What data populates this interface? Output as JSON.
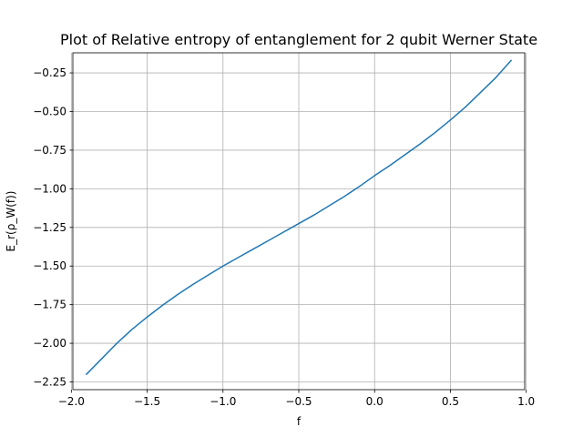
{
  "chart_data": {
    "type": "line",
    "title": "Plot of Relative entropy of entanglement for 2 qubit Werner State",
    "xlabel": "f",
    "ylabel": "E_r(ρ_W(f))",
    "xlim": [
      -1.99,
      0.99
    ],
    "ylim": [
      -2.3,
      -0.12
    ],
    "xticks": [
      -2.0,
      -1.5,
      -1.0,
      -0.5,
      0.0,
      0.5,
      1.0
    ],
    "xtick_labels": [
      "−2.0",
      "−1.5",
      "−1.0",
      "−0.5",
      "0.0",
      "0.5",
      "1.0"
    ],
    "yticks": [
      -2.25,
      -2.0,
      -1.75,
      -1.5,
      -1.25,
      -1.0,
      -0.75,
      -0.5,
      -0.25
    ],
    "ytick_labels": [
      "−2.25",
      "−2.00",
      "−1.75",
      "−1.50",
      "−1.25",
      "−1.00",
      "−0.75",
      "−0.50",
      "−0.25"
    ],
    "grid": true,
    "series": [
      {
        "color": "#1f77b4",
        "x": [
          -1.9,
          -1.8,
          -1.7,
          -1.6,
          -1.5,
          -1.4,
          -1.3,
          -1.2,
          -1.1,
          -1.0,
          -0.9,
          -0.8,
          -0.7,
          -0.6,
          -0.5,
          -0.4,
          -0.3,
          -0.2,
          -0.1,
          0.0,
          0.1,
          0.2,
          0.3,
          0.4,
          0.5,
          0.6,
          0.7,
          0.8,
          0.9
        ],
        "y": [
          -2.2,
          -2.1,
          -2.0,
          -1.91,
          -1.83,
          -1.755,
          -1.685,
          -1.62,
          -1.56,
          -1.5,
          -1.445,
          -1.39,
          -1.335,
          -1.28,
          -1.225,
          -1.17,
          -1.11,
          -1.05,
          -0.985,
          -0.915,
          -0.85,
          -0.78,
          -0.71,
          -0.635,
          -0.555,
          -0.47,
          -0.375,
          -0.28,
          -0.17
        ]
      }
    ]
  }
}
